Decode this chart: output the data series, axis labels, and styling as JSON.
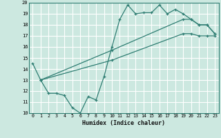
{
  "xlabel": "Humidex (Indice chaleur)",
  "ylabel": "",
  "xlim": [
    -0.5,
    23.5
  ],
  "ylim": [
    10,
    20
  ],
  "yticks": [
    10,
    11,
    12,
    13,
    14,
    15,
    16,
    17,
    18,
    19,
    20
  ],
  "xticks": [
    0,
    1,
    2,
    3,
    4,
    5,
    6,
    7,
    8,
    9,
    10,
    11,
    12,
    13,
    14,
    15,
    16,
    17,
    18,
    19,
    20,
    21,
    22,
    23
  ],
  "bg_color": "#cce8e0",
  "grid_color": "#ffffff",
  "line_color": "#2e7d72",
  "lines": [
    {
      "x": [
        0,
        1,
        2,
        3,
        4,
        5,
        6,
        7,
        8,
        9,
        10,
        11,
        12,
        13,
        14,
        15,
        16,
        17,
        18,
        19,
        20,
        21,
        22,
        23
      ],
      "y": [
        14.5,
        13.0,
        11.8,
        11.8,
        11.6,
        10.5,
        10.0,
        11.5,
        11.2,
        13.3,
        16.0,
        18.5,
        19.8,
        19.0,
        19.1,
        19.1,
        19.8,
        19.0,
        19.4,
        19.0,
        18.5,
        18.0,
        18.0,
        17.2
      ]
    },
    {
      "x": [
        1,
        10,
        19,
        20,
        21,
        22,
        23
      ],
      "y": [
        13.0,
        15.7,
        18.5,
        18.5,
        18.0,
        18.0,
        17.2
      ]
    },
    {
      "x": [
        1,
        10,
        19,
        20,
        21,
        22,
        23
      ],
      "y": [
        13.0,
        14.8,
        17.2,
        17.2,
        17.0,
        17.0,
        17.0
      ]
    }
  ]
}
